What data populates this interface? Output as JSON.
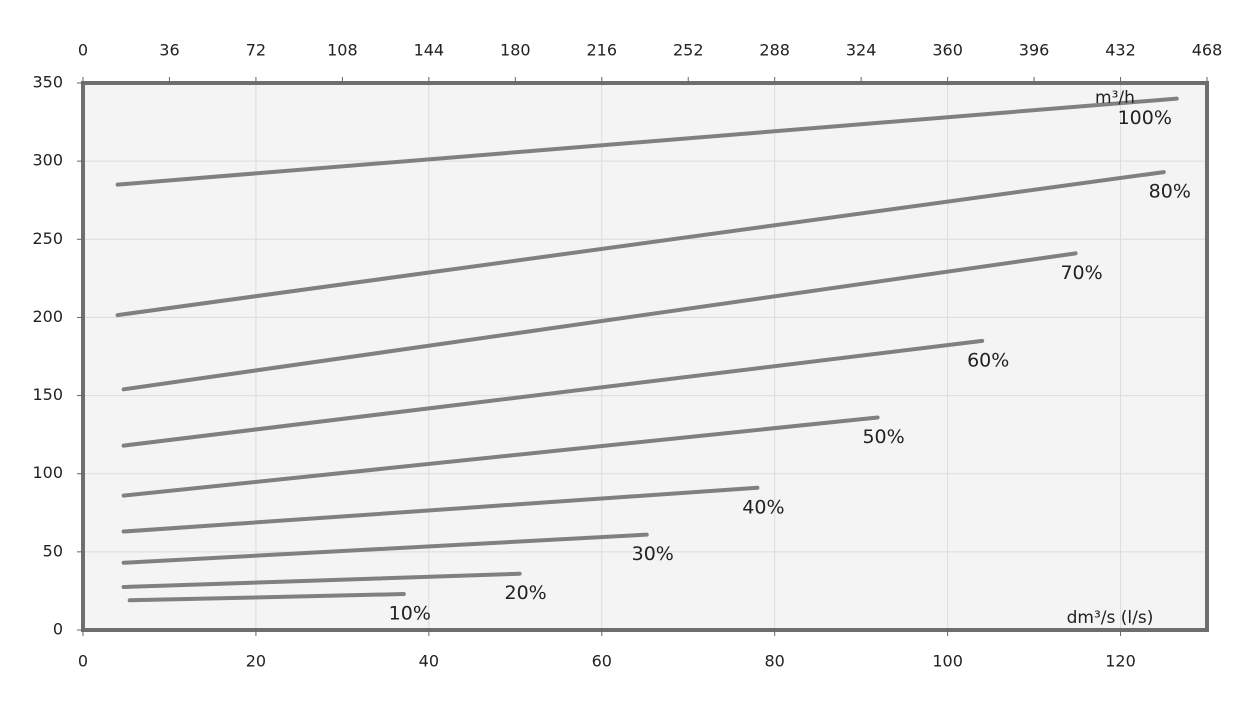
{
  "chart_data": {
    "type": "line",
    "x_label": "dm³/s (l/s)",
    "x2_label": "m³/h",
    "xlim": [
      0,
      130
    ],
    "xticks": [
      0,
      20,
      40,
      60,
      80,
      100,
      120
    ],
    "x2lim": [
      0,
      468
    ],
    "x2ticks": [
      0,
      36,
      72,
      108,
      144,
      180,
      216,
      252,
      288,
      324,
      360,
      396,
      432,
      468
    ],
    "ylim": [
      0,
      350
    ],
    "yticks": [
      0,
      50,
      100,
      150,
      200,
      250,
      300,
      350
    ],
    "grid": true,
    "series": [
      {
        "name": "100%",
        "color": "#808080",
        "x": [
          4,
          126.5
        ],
        "values": [
          285,
          340
        ]
      },
      {
        "name": "80%",
        "color": "#808080",
        "x": [
          4,
          125
        ],
        "values": [
          201.5,
          293
        ]
      },
      {
        "name": "70%",
        "color": "#808080",
        "x": [
          4.7,
          114.8
        ],
        "values": [
          154,
          241
        ]
      },
      {
        "name": "60%",
        "color": "#808080",
        "x": [
          4.7,
          104
        ],
        "values": [
          118,
          185
        ]
      },
      {
        "name": "50%",
        "color": "#808080",
        "x": [
          4.7,
          91.9
        ],
        "values": [
          86,
          136
        ]
      },
      {
        "name": "40%",
        "color": "#808080",
        "x": [
          4.7,
          78
        ],
        "values": [
          63,
          91
        ]
      },
      {
        "name": "30%",
        "color": "#808080",
        "x": [
          4.7,
          65.2
        ],
        "values": [
          43,
          61
        ]
      },
      {
        "name": "20%",
        "color": "#808080",
        "x": [
          4.7,
          50.5
        ],
        "values": [
          27.5,
          36
        ]
      },
      {
        "name": "10%",
        "color": "#808080",
        "x": [
          5.4,
          37.1
        ],
        "values": [
          19,
          23
        ]
      }
    ]
  }
}
